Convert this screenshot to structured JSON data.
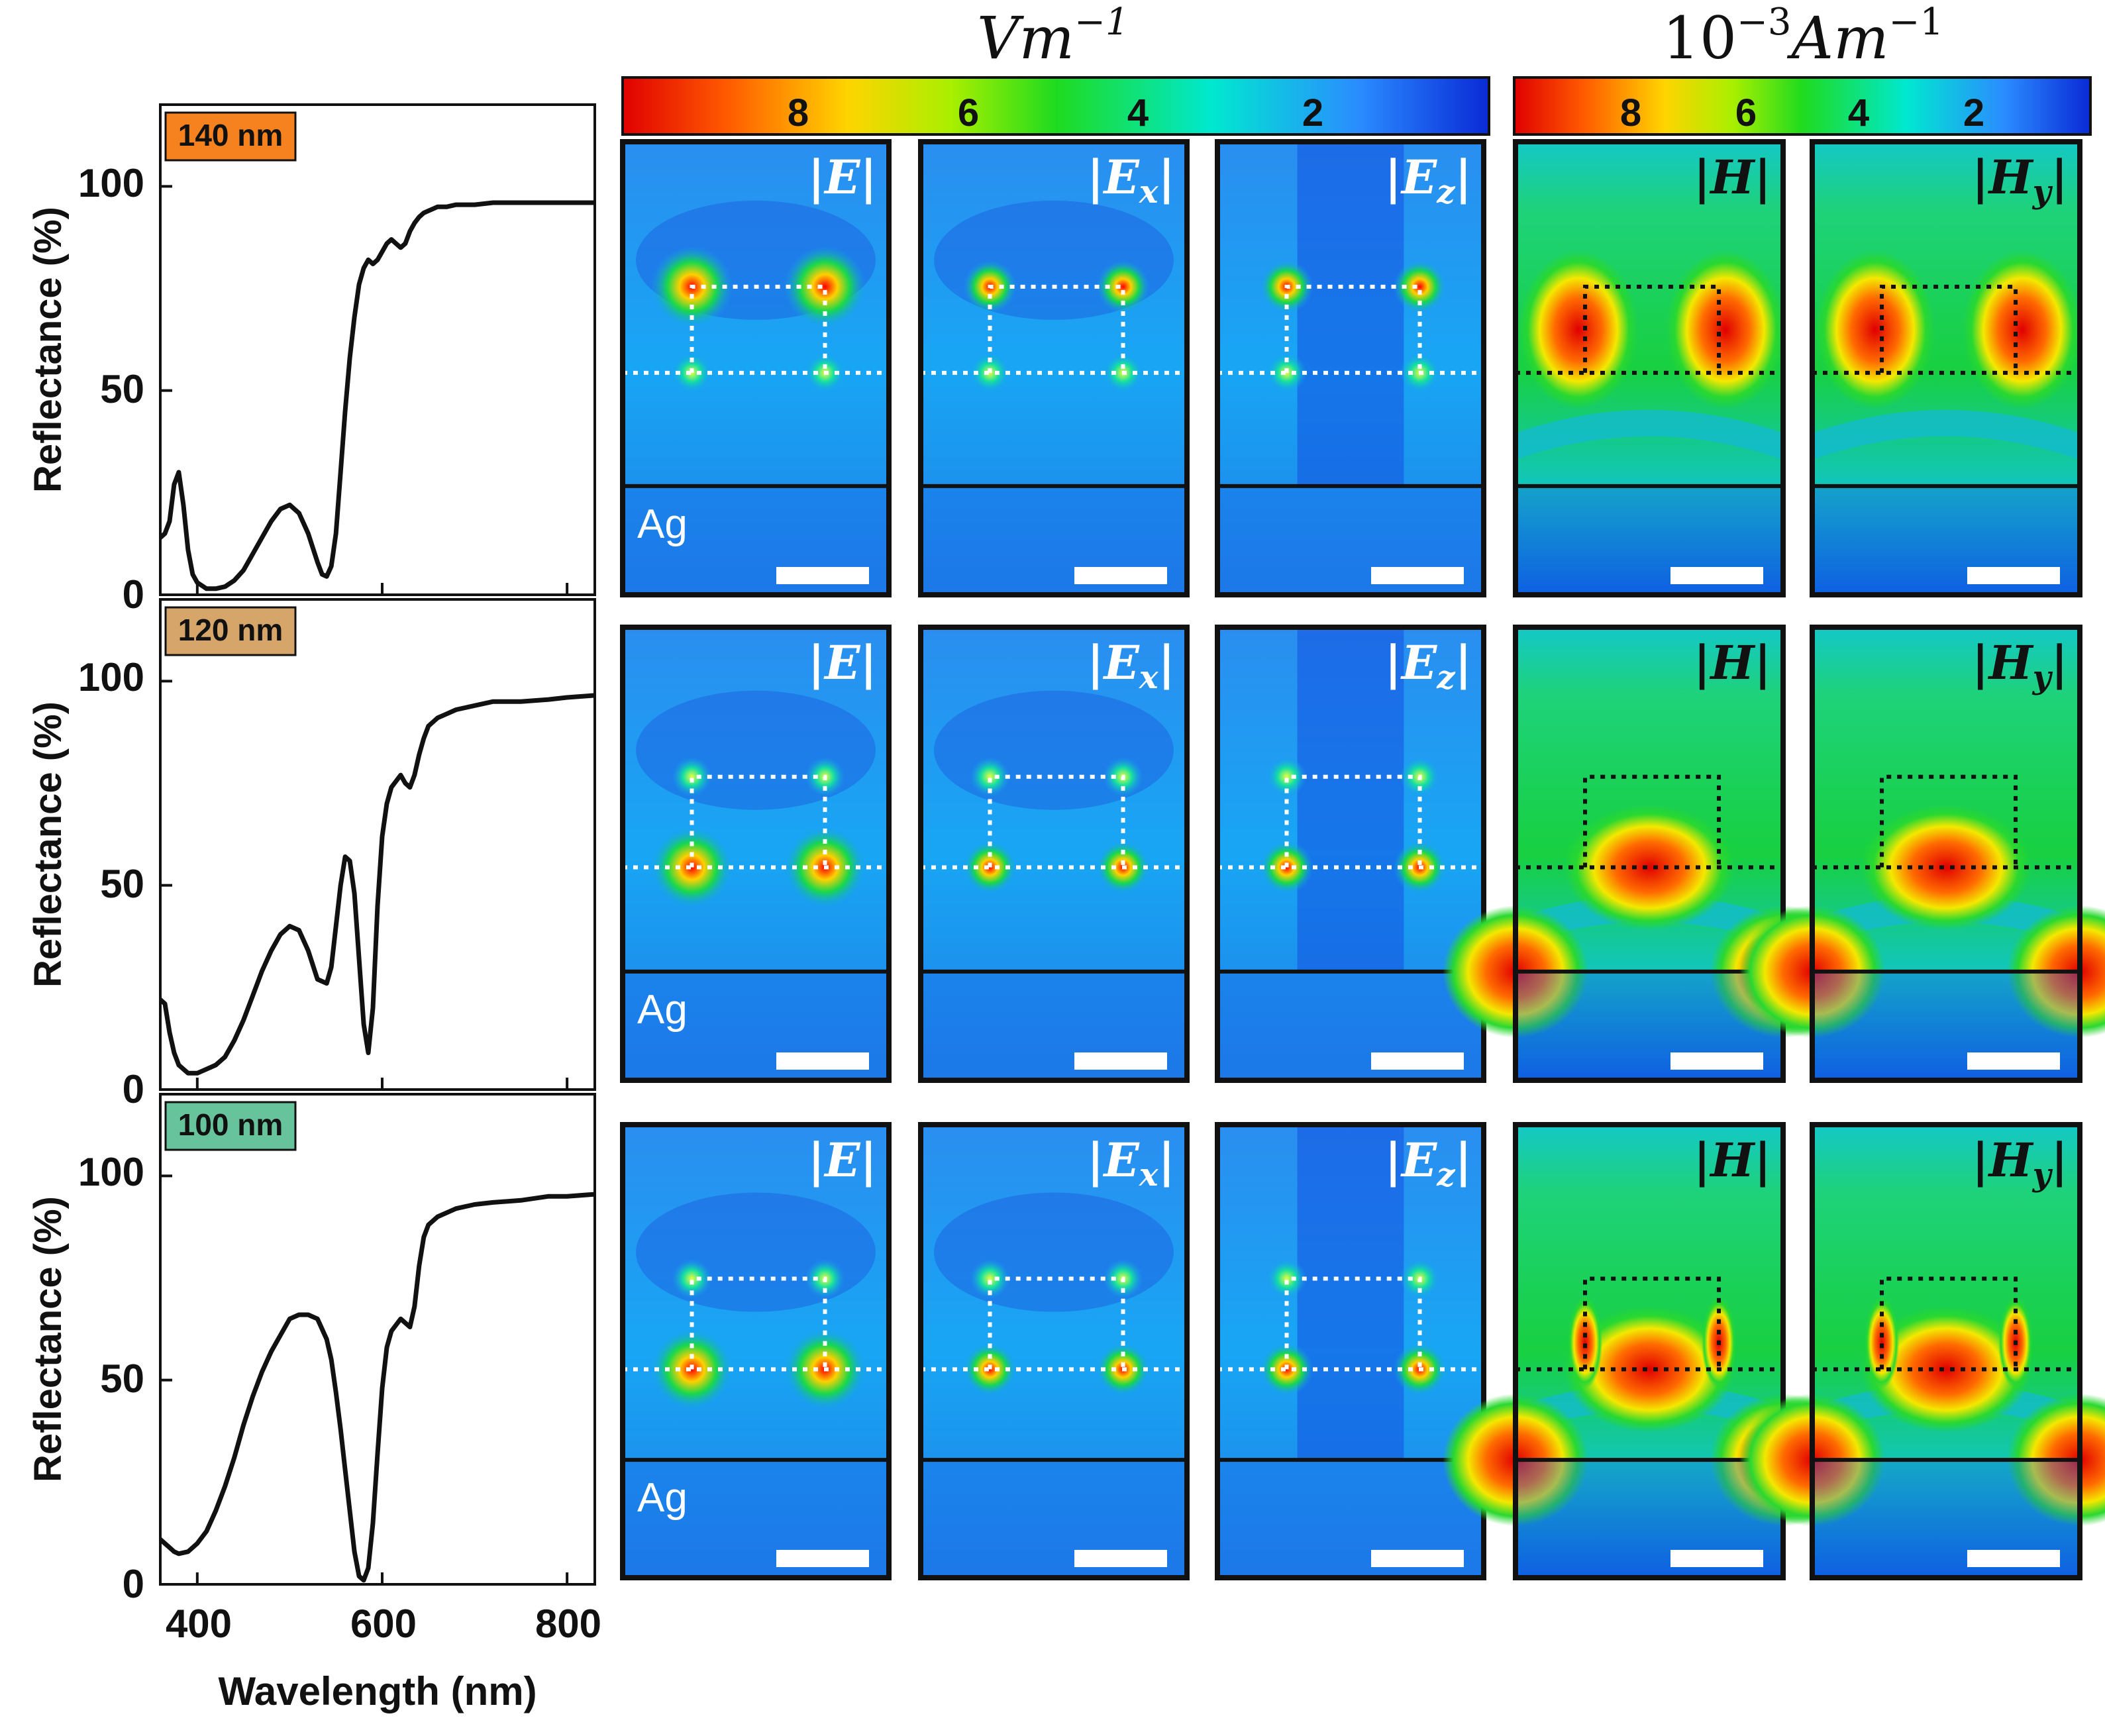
{
  "figure": {
    "colorbars": [
      {
        "unit_base": "Vm",
        "unit_exp": "−1",
        "ticks": [
          "8",
          "6",
          "4",
          "2"
        ]
      },
      {
        "unit_prefix": "10",
        "unit_prefix_exp": "−3",
        "unit_base": "Am",
        "unit_exp": "−1",
        "ticks": [
          "8",
          "6",
          "4",
          "2"
        ]
      }
    ],
    "field_labels": {
      "E": "E",
      "Ex": "E",
      "Ex_sub": "x",
      "Ez": "E",
      "Ez_sub": "z",
      "H": "H",
      "Hy": "H",
      "Hy_sub": "y"
    },
    "substrate_label": "Ag",
    "ylabel": "Reflectance (%)",
    "xlabel": "Wavelength (nm)",
    "yticks": [
      "0",
      "50",
      "100"
    ],
    "xticks": [
      "400",
      "600",
      "800"
    ],
    "rows": [
      {
        "label": "140 nm",
        "color": "#f5821f"
      },
      {
        "label": "120 nm",
        "color": "#d6a56a"
      },
      {
        "label": "100 nm",
        "color": "#66c39b"
      }
    ]
  },
  "chart_data": [
    {
      "type": "line",
      "title": "140 nm",
      "xlabel": "Wavelength (nm)",
      "ylabel": "Reflectance (%)",
      "xlim": [
        360,
        830
      ],
      "ylim": [
        0,
        120
      ],
      "x": [
        360,
        365,
        370,
        375,
        380,
        385,
        390,
        395,
        400,
        410,
        420,
        430,
        440,
        450,
        460,
        470,
        480,
        490,
        500,
        510,
        520,
        530,
        535,
        540,
        545,
        550,
        555,
        560,
        565,
        570,
        575,
        580,
        585,
        590,
        595,
        600,
        605,
        610,
        615,
        620,
        625,
        630,
        635,
        640,
        645,
        650,
        655,
        660,
        670,
        680,
        700,
        720,
        750,
        780,
        800,
        830
      ],
      "y": [
        14,
        15,
        18,
        27,
        30,
        22,
        11,
        5,
        3,
        1.5,
        1.5,
        2,
        3.5,
        6,
        10,
        14,
        18,
        21,
        22,
        20,
        15,
        8,
        5,
        4.5,
        7,
        15,
        30,
        45,
        58,
        68,
        76,
        80,
        82,
        81,
        82,
        84,
        86,
        87,
        86,
        85,
        86,
        89,
        91,
        92.5,
        93.5,
        94,
        94.5,
        95,
        95,
        95.5,
        95.5,
        96,
        96,
        96,
        96,
        96
      ]
    },
    {
      "type": "line",
      "title": "120 nm",
      "xlabel": "Wavelength (nm)",
      "ylabel": "Reflectance (%)",
      "xlim": [
        360,
        830
      ],
      "ylim": [
        0,
        120
      ],
      "x": [
        360,
        365,
        370,
        375,
        380,
        390,
        400,
        410,
        420,
        430,
        440,
        450,
        460,
        470,
        480,
        490,
        500,
        510,
        520,
        530,
        540,
        545,
        550,
        555,
        560,
        565,
        570,
        575,
        580,
        585,
        590,
        595,
        600,
        605,
        610,
        620,
        625,
        630,
        635,
        640,
        645,
        650,
        660,
        670,
        680,
        700,
        720,
        750,
        780,
        800,
        830
      ],
      "y": [
        22,
        21,
        14,
        9,
        6,
        4,
        4,
        5,
        6,
        8,
        12,
        17,
        23,
        29,
        34,
        38,
        40,
        39,
        34,
        27,
        26,
        30,
        40,
        50,
        57,
        56,
        48,
        32,
        16,
        9,
        20,
        45,
        62,
        70,
        74,
        77,
        75,
        74,
        77,
        82,
        86,
        89,
        91,
        92,
        93,
        94,
        95,
        95,
        95.5,
        96,
        96.5
      ]
    },
    {
      "type": "line",
      "title": "100 nm",
      "xlabel": "Wavelength (nm)",
      "ylabel": "Reflectance (%)",
      "xlim": [
        360,
        830
      ],
      "ylim": [
        0,
        120
      ],
      "x": [
        360,
        365,
        370,
        375,
        380,
        390,
        400,
        410,
        420,
        430,
        440,
        450,
        460,
        470,
        480,
        490,
        500,
        510,
        520,
        530,
        540,
        545,
        550,
        555,
        560,
        565,
        570,
        575,
        580,
        585,
        590,
        595,
        600,
        605,
        610,
        620,
        625,
        630,
        635,
        640,
        645,
        650,
        660,
        670,
        680,
        700,
        720,
        750,
        780,
        800,
        830
      ],
      "y": [
        11,
        10,
        9,
        8,
        7.5,
        8,
        10,
        13,
        18,
        24,
        31,
        39,
        46,
        52,
        57,
        61,
        65,
        66,
        66,
        65,
        60,
        55,
        47,
        38,
        28,
        18,
        8,
        2,
        1,
        4,
        15,
        32,
        48,
        58,
        62,
        65,
        64,
        63,
        68,
        78,
        85,
        88,
        90,
        91,
        92,
        93,
        93.5,
        94,
        95,
        95,
        95.5
      ]
    }
  ]
}
